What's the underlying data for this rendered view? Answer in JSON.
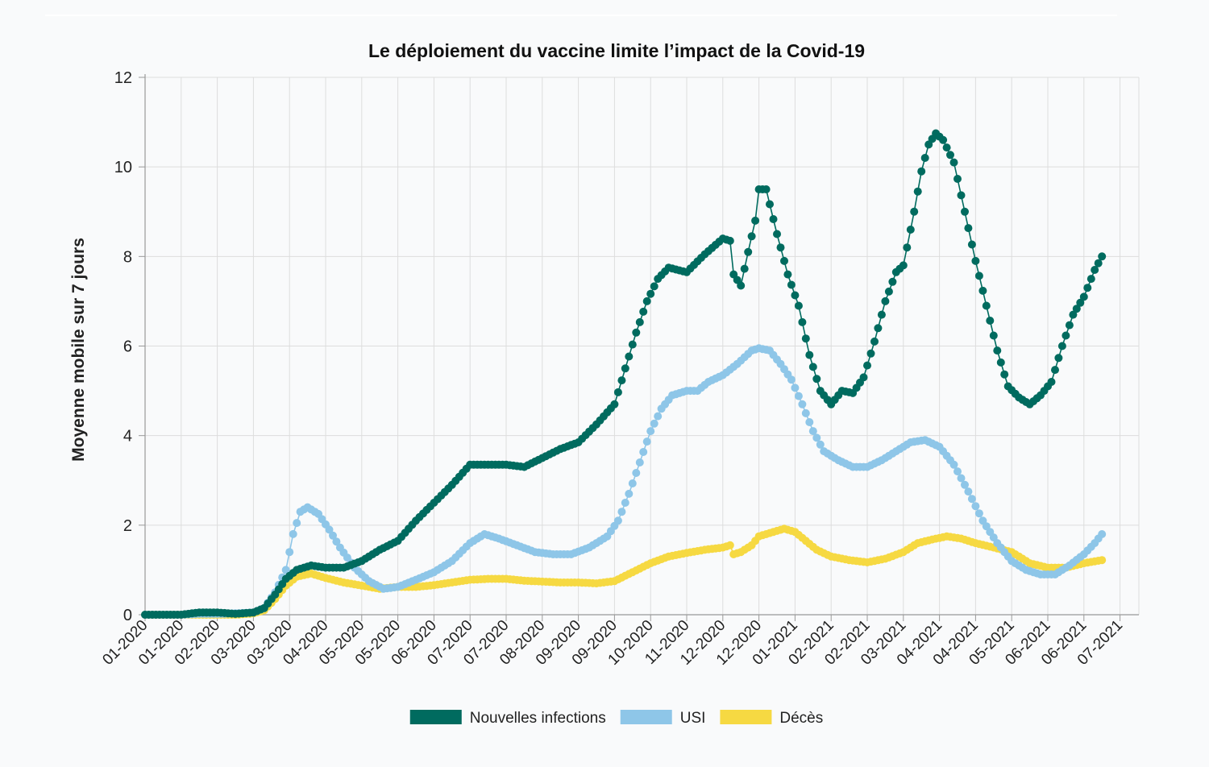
{
  "chart_data": {
    "type": "line",
    "title": "Le déploiement du vaccine limite l’impact de la Covid-19",
    "ylabel": "Moyenne mobile sur 7 jours",
    "xlabel": "",
    "ylim": [
      0,
      12
    ],
    "yticks": [
      "0",
      "2",
      "4",
      "6",
      "8",
      "10",
      "12"
    ],
    "grid": true,
    "legend_position": "bottom-center",
    "x_tick_labels": [
      "01-2020",
      "01-2020",
      "02-2020",
      "03-2020",
      "03-2020",
      "04-2020",
      "05-2020",
      "05-2020",
      "06-2020",
      "07-2020",
      "07-2020",
      "08-2020",
      "09-2020",
      "09-2020",
      "10-2020",
      "11-2020",
      "12-2020",
      "12-2020",
      "01-2021",
      "02-2021",
      "02-2021",
      "03-2021",
      "04-2021",
      "04-2021",
      "05-2021",
      "06-2021",
      "06-2021",
      "07-2021"
    ],
    "x_range": [
      0,
      27.5
    ],
    "series": [
      {
        "name": "Nouvelles infections",
        "color": "#006b5f",
        "points": [
          [
            0,
            0
          ],
          [
            0.5,
            0
          ],
          [
            1,
            0
          ],
          [
            1.5,
            0.05
          ],
          [
            2,
            0.05
          ],
          [
            2.5,
            0.02
          ],
          [
            3,
            0.05
          ],
          [
            3.3,
            0.15
          ],
          [
            3.6,
            0.45
          ],
          [
            3.9,
            0.8
          ],
          [
            4.2,
            1.0
          ],
          [
            4.6,
            1.1
          ],
          [
            5.0,
            1.05
          ],
          [
            5.5,
            1.05
          ],
          [
            6.0,
            1.2
          ],
          [
            6.5,
            1.45
          ],
          [
            7.0,
            1.65
          ],
          [
            7.5,
            2.1
          ],
          [
            8.0,
            2.5
          ],
          [
            8.5,
            2.9
          ],
          [
            9.0,
            3.35
          ],
          [
            9.5,
            3.35
          ],
          [
            10.0,
            3.35
          ],
          [
            10.5,
            3.3
          ],
          [
            11.0,
            3.5
          ],
          [
            11.5,
            3.7
          ],
          [
            12.0,
            3.85
          ],
          [
            12.5,
            4.25
          ],
          [
            13.0,
            4.7
          ],
          [
            13.3,
            5.5
          ],
          [
            13.6,
            6.3
          ],
          [
            13.9,
            7.0
          ],
          [
            14.2,
            7.5
          ],
          [
            14.5,
            7.75
          ],
          [
            15.0,
            7.65
          ],
          [
            15.5,
            8.05
          ],
          [
            16.0,
            8.4
          ],
          [
            16.2,
            8.35
          ],
          [
            16.3,
            7.6
          ],
          [
            16.5,
            7.35
          ],
          [
            16.7,
            8.1
          ],
          [
            16.9,
            8.8
          ],
          [
            17.0,
            9.5
          ],
          [
            17.2,
            9.5
          ],
          [
            17.5,
            8.5
          ],
          [
            17.8,
            7.6
          ],
          [
            18.1,
            6.9
          ],
          [
            18.4,
            5.8
          ],
          [
            18.7,
            5.0
          ],
          [
            19.0,
            4.7
          ],
          [
            19.3,
            5.0
          ],
          [
            19.6,
            4.95
          ],
          [
            19.9,
            5.3
          ],
          [
            20.2,
            6.1
          ],
          [
            20.5,
            7.0
          ],
          [
            20.8,
            7.65
          ],
          [
            21.0,
            7.8
          ],
          [
            21.3,
            9.0
          ],
          [
            21.5,
            9.9
          ],
          [
            21.7,
            10.5
          ],
          [
            21.9,
            10.75
          ],
          [
            22.1,
            10.6
          ],
          [
            22.4,
            10.1
          ],
          [
            22.7,
            9.0
          ],
          [
            23.0,
            7.9
          ],
          [
            23.3,
            6.9
          ],
          [
            23.6,
            5.9
          ],
          [
            23.9,
            5.1
          ],
          [
            24.2,
            4.85
          ],
          [
            24.5,
            4.7
          ],
          [
            24.8,
            4.9
          ],
          [
            25.1,
            5.2
          ],
          [
            25.4,
            6.0
          ],
          [
            25.7,
            6.7
          ],
          [
            26.0,
            7.1
          ],
          [
            26.3,
            7.7
          ],
          [
            26.5,
            8.0
          ]
        ]
      },
      {
        "name": "USI",
        "color": "#8ec6e8",
        "points": [
          [
            0,
            0
          ],
          [
            0.5,
            0
          ],
          [
            1,
            0
          ],
          [
            1.5,
            0.02
          ],
          [
            2,
            0.02
          ],
          [
            2.5,
            0.03
          ],
          [
            3,
            0.05
          ],
          [
            3.3,
            0.15
          ],
          [
            3.6,
            0.5
          ],
          [
            3.9,
            1.0
          ],
          [
            4.1,
            1.8
          ],
          [
            4.3,
            2.3
          ],
          [
            4.5,
            2.4
          ],
          [
            4.8,
            2.25
          ],
          [
            5.1,
            1.9
          ],
          [
            5.4,
            1.5
          ],
          [
            5.8,
            1.05
          ],
          [
            6.2,
            0.75
          ],
          [
            6.6,
            0.58
          ],
          [
            7.0,
            0.62
          ],
          [
            7.5,
            0.78
          ],
          [
            8.0,
            0.95
          ],
          [
            8.5,
            1.2
          ],
          [
            9.0,
            1.6
          ],
          [
            9.4,
            1.8
          ],
          [
            9.8,
            1.7
          ],
          [
            10.3,
            1.55
          ],
          [
            10.8,
            1.4
          ],
          [
            11.3,
            1.35
          ],
          [
            11.8,
            1.35
          ],
          [
            12.3,
            1.5
          ],
          [
            12.8,
            1.75
          ],
          [
            13.1,
            2.1
          ],
          [
            13.4,
            2.7
          ],
          [
            13.7,
            3.4
          ],
          [
            14.0,
            4.1
          ],
          [
            14.3,
            4.6
          ],
          [
            14.6,
            4.9
          ],
          [
            15.0,
            5.0
          ],
          [
            15.3,
            5.0
          ],
          [
            15.6,
            5.2
          ],
          [
            16.0,
            5.35
          ],
          [
            16.4,
            5.6
          ],
          [
            16.8,
            5.9
          ],
          [
            17.0,
            5.95
          ],
          [
            17.3,
            5.9
          ],
          [
            17.6,
            5.6
          ],
          [
            17.9,
            5.25
          ],
          [
            18.2,
            4.7
          ],
          [
            18.5,
            4.1
          ],
          [
            18.8,
            3.65
          ],
          [
            19.2,
            3.45
          ],
          [
            19.6,
            3.3
          ],
          [
            20.0,
            3.3
          ],
          [
            20.4,
            3.45
          ],
          [
            20.8,
            3.65
          ],
          [
            21.2,
            3.85
          ],
          [
            21.6,
            3.9
          ],
          [
            22.0,
            3.75
          ],
          [
            22.4,
            3.35
          ],
          [
            22.8,
            2.75
          ],
          [
            23.2,
            2.1
          ],
          [
            23.6,
            1.6
          ],
          [
            24.0,
            1.2
          ],
          [
            24.4,
            1.0
          ],
          [
            24.8,
            0.9
          ],
          [
            25.2,
            0.9
          ],
          [
            25.6,
            1.1
          ],
          [
            26.0,
            1.35
          ],
          [
            26.3,
            1.6
          ],
          [
            26.5,
            1.8
          ]
        ]
      },
      {
        "name": "Décès",
        "color": "#f6d942",
        "points": [
          [
            0,
            0
          ],
          [
            0.5,
            0
          ],
          [
            1,
            0
          ],
          [
            1.5,
            0
          ],
          [
            2,
            0
          ],
          [
            2.5,
            0
          ],
          [
            3,
            0.03
          ],
          [
            3.3,
            0.1
          ],
          [
            3.6,
            0.35
          ],
          [
            3.9,
            0.65
          ],
          [
            4.2,
            0.85
          ],
          [
            4.6,
            0.92
          ],
          [
            5.0,
            0.82
          ],
          [
            5.5,
            0.72
          ],
          [
            6.0,
            0.65
          ],
          [
            6.5,
            0.58
          ],
          [
            7.0,
            0.62
          ],
          [
            7.5,
            0.62
          ],
          [
            8.0,
            0.66
          ],
          [
            8.5,
            0.72
          ],
          [
            9.0,
            0.78
          ],
          [
            9.5,
            0.8
          ],
          [
            10.0,
            0.8
          ],
          [
            10.5,
            0.76
          ],
          [
            11.0,
            0.74
          ],
          [
            11.5,
            0.72
          ],
          [
            12.0,
            0.72
          ],
          [
            12.5,
            0.7
          ],
          [
            13.0,
            0.75
          ],
          [
            13.5,
            0.95
          ],
          [
            14.0,
            1.15
          ],
          [
            14.5,
            1.3
          ],
          [
            15.0,
            1.38
          ],
          [
            15.5,
            1.45
          ],
          [
            16.0,
            1.5
          ],
          [
            16.2,
            1.55
          ],
          [
            16.3,
            1.35
          ],
          [
            16.5,
            1.4
          ],
          [
            16.8,
            1.55
          ],
          [
            17.0,
            1.75
          ],
          [
            17.4,
            1.85
          ],
          [
            17.7,
            1.92
          ],
          [
            18.0,
            1.85
          ],
          [
            18.3,
            1.65
          ],
          [
            18.6,
            1.45
          ],
          [
            19.0,
            1.3
          ],
          [
            19.5,
            1.22
          ],
          [
            20.0,
            1.17
          ],
          [
            20.5,
            1.25
          ],
          [
            21.0,
            1.4
          ],
          [
            21.4,
            1.6
          ],
          [
            21.8,
            1.68
          ],
          [
            22.2,
            1.75
          ],
          [
            22.6,
            1.7
          ],
          [
            23.0,
            1.6
          ],
          [
            23.5,
            1.5
          ],
          [
            24.0,
            1.4
          ],
          [
            24.5,
            1.15
          ],
          [
            25.0,
            1.05
          ],
          [
            25.5,
            1.05
          ],
          [
            26.0,
            1.15
          ],
          [
            26.5,
            1.22
          ]
        ]
      }
    ]
  }
}
